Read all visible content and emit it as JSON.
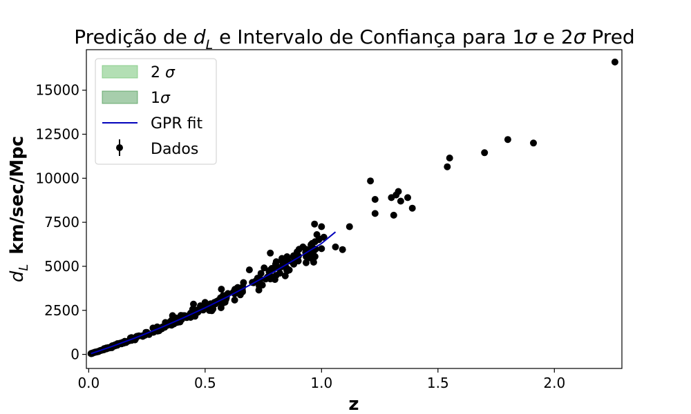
{
  "chart_data": {
    "type": "scatter",
    "title": {
      "prefix": "Predição de ",
      "var_base": "d",
      "var_sub": "L",
      "middle": " e  Intervalo de Confiança para 1",
      "sigma1": "σ",
      "and": " e 2",
      "sigma2": "σ",
      "suffix": " Pred"
    },
    "xlabel": "z",
    "ylabel": {
      "var_base": "d",
      "var_sub": "L",
      "units": "km/sec/Mpc"
    },
    "xlim": [
      -0.01,
      2.29
    ],
    "ylim": [
      -800,
      17300
    ],
    "x_ticks": [
      0.0,
      0.5,
      1.0,
      1.5,
      2.0
    ],
    "x_tick_labels": [
      "0.0",
      "0.5",
      "1.0",
      "1.5",
      "2.0"
    ],
    "y_ticks": [
      0,
      2500,
      5000,
      7500,
      10000,
      12500,
      15000
    ],
    "y_tick_labels": [
      "0",
      "2500",
      "5000",
      "7500",
      "10000",
      "12500",
      "15000"
    ],
    "grid": false,
    "legend_position": "top-left",
    "legend": [
      {
        "label": "2 ",
        "sigma": "σ",
        "kind": "patch",
        "color": "#74c476",
        "alpha": 0.55
      },
      {
        "label": "1",
        "sigma": "σ",
        "kind": "patch",
        "color": "#2e8b3a",
        "alpha": 0.42
      },
      {
        "label": "GPR fit",
        "sigma": "",
        "kind": "line",
        "color": "#0000bb"
      },
      {
        "label": "Dados",
        "sigma": "",
        "kind": "errorbar",
        "color": "#000000"
      }
    ],
    "series": [
      {
        "name": "Dados",
        "color": "#000000",
        "marker": "circle",
        "trend": {
          "x_from": 0.01,
          "x_to": 1.0,
          "count": 260,
          "seed": 7,
          "formula_note": "d_L ≈ 4282.7·(z + 0.47·z²)",
          "rel_scatter": 0.055
        },
        "points": [
          [
            0.97,
            7400
          ],
          [
            1.0,
            7250
          ],
          [
            0.98,
            6800
          ],
          [
            1.01,
            6650
          ],
          [
            1.06,
            6100
          ],
          [
            1.09,
            5950
          ],
          [
            0.96,
            6300
          ],
          [
            0.99,
            6550
          ],
          [
            1.0,
            6000
          ],
          [
            0.95,
            5750
          ],
          [
            0.9,
            5300
          ],
          [
            0.92,
            6100
          ],
          [
            0.88,
            5600
          ],
          [
            0.85,
            4900
          ],
          [
            0.8,
            4250
          ],
          [
            0.78,
            5750
          ],
          [
            0.83,
            5450
          ],
          [
            0.74,
            4600
          ],
          [
            0.69,
            4800
          ],
          [
            0.64,
            3800
          ],
          [
            0.57,
            3700
          ],
          [
            0.5,
            2950
          ],
          [
            0.45,
            2850
          ],
          [
            0.42,
            2100
          ],
          [
            0.36,
            2200
          ],
          [
            1.12,
            7250
          ],
          [
            1.21,
            9850
          ],
          [
            1.23,
            8800
          ],
          [
            1.23,
            8000
          ],
          [
            1.3,
            8900
          ],
          [
            1.32,
            9050
          ],
          [
            1.33,
            9250
          ],
          [
            1.34,
            8700
          ],
          [
            1.37,
            8900
          ],
          [
            1.39,
            8300
          ],
          [
            1.31,
            7900
          ],
          [
            1.54,
            10650
          ],
          [
            1.55,
            11150
          ],
          [
            1.7,
            11450
          ],
          [
            1.8,
            12200
          ],
          [
            1.91,
            12000
          ],
          [
            2.26,
            16600
          ]
        ]
      }
    ],
    "gpr_fit": {
      "name": "GPR fit",
      "color": "#0000bb",
      "x": [
        0.01,
        0.1,
        0.2,
        0.3,
        0.4,
        0.5,
        0.6,
        0.7,
        0.8,
        0.9,
        1.0,
        1.06
      ],
      "y": [
        43,
        448,
        937,
        1466,
        2035,
        2645,
        3296,
        3988,
        4720,
        5494,
        6300,
        6950
      ]
    }
  }
}
